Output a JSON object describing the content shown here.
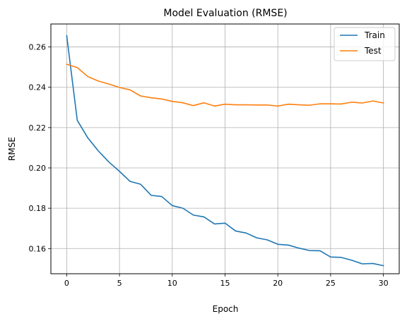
{
  "chart_data": {
    "type": "line",
    "title": "Model Evaluation (RMSE)",
    "xlabel": "Epoch",
    "ylabel": "RMSE",
    "xlim": [
      -1.5,
      31.5
    ],
    "ylim": [
      0.1475,
      0.2714
    ],
    "xticks": [
      0,
      5,
      10,
      15,
      20,
      25,
      30
    ],
    "yticks": [
      0.16,
      0.18,
      0.2,
      0.22,
      0.24,
      0.26
    ],
    "xtick_labels": [
      "0",
      "5",
      "10",
      "15",
      "20",
      "25",
      "30"
    ],
    "ytick_labels": [
      "0.16",
      "0.18",
      "0.20",
      "0.22",
      "0.24",
      "0.26"
    ],
    "grid": true,
    "legend_position": "top-right",
    "x": [
      0,
      1,
      2,
      3,
      4,
      5,
      6,
      7,
      8,
      9,
      10,
      11,
      12,
      13,
      14,
      15,
      16,
      17,
      18,
      19,
      20,
      21,
      22,
      23,
      24,
      25,
      26,
      27,
      28,
      29,
      30
    ],
    "series": [
      {
        "name": "Train",
        "color": "#1f77b4",
        "values": [
          0.2656,
          0.2236,
          0.2149,
          0.2084,
          0.2029,
          0.1983,
          0.1933,
          0.1919,
          0.1864,
          0.1858,
          0.1813,
          0.18,
          0.1766,
          0.1757,
          0.1722,
          0.1726,
          0.1687,
          0.1677,
          0.1653,
          0.1643,
          0.1621,
          0.1617,
          0.1602,
          0.159,
          0.1589,
          0.1558,
          0.1556,
          0.1542,
          0.1524,
          0.1526,
          0.1515
        ]
      },
      {
        "name": "Test",
        "color": "#ff7f0e",
        "values": [
          0.2514,
          0.2498,
          0.2453,
          0.2431,
          0.2416,
          0.2399,
          0.2387,
          0.2357,
          0.2348,
          0.2342,
          0.233,
          0.2323,
          0.2309,
          0.2323,
          0.2307,
          0.2316,
          0.2313,
          0.2313,
          0.2312,
          0.2312,
          0.2307,
          0.2316,
          0.2313,
          0.2311,
          0.2318,
          0.2318,
          0.2317,
          0.2326,
          0.2322,
          0.2332,
          0.2322
        ]
      }
    ]
  }
}
